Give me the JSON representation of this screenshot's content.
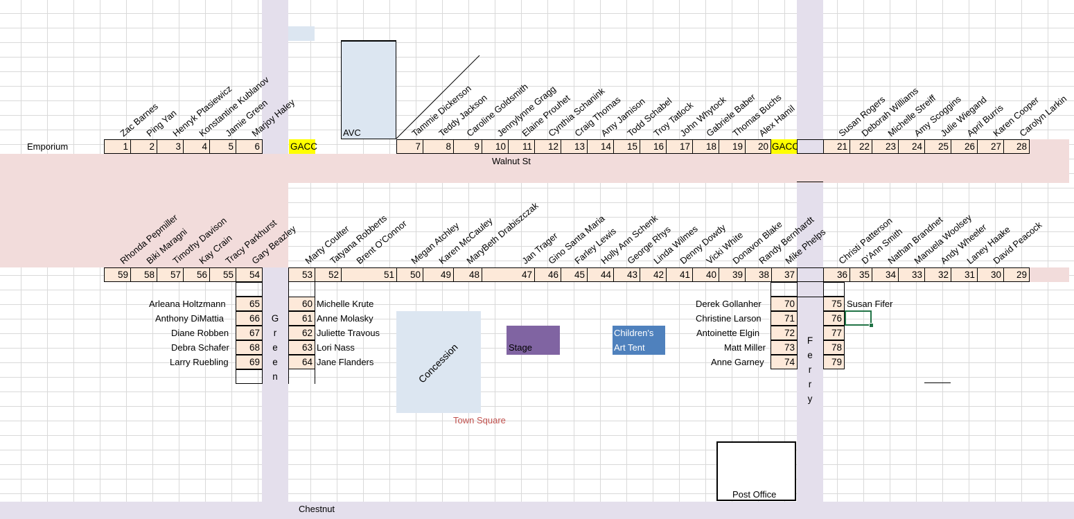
{
  "labels": {
    "emporium": "Emporium",
    "walnut": "Walnut St",
    "chestnut": "Chestnut",
    "avc": "AVC",
    "gacc": "GACC",
    "concession": "Concession",
    "town_square": "Town Square",
    "stage": "Stage",
    "childrens_art_tent_line1": "Children's",
    "childrens_art_tent_line2": "Art Tent",
    "post_office": "Post Office",
    "green_letters": [
      "G",
      "r",
      "e",
      "e",
      "n"
    ],
    "ferry_letters": [
      "F",
      "e",
      "r",
      "r",
      "y"
    ]
  },
  "colors": {
    "street_h": "#f2dcdb",
    "street_v": "#e4dfec",
    "cell_fill": "#fde9d9",
    "gacc": "#ffff00",
    "avc": "#dce6f1",
    "concession": "#dce6f1",
    "stage": "#8064a2",
    "art_tent": "#4f81bd",
    "town_square_text": "#c0504d"
  },
  "top_row": {
    "left": [
      {
        "num": "1",
        "name": "Zac Barnes"
      },
      {
        "num": "2",
        "name": "Ping Yan"
      },
      {
        "num": "3",
        "name": "Henryk Ptasiewicz"
      },
      {
        "num": "4",
        "name": "Konstantine Kublanov"
      },
      {
        "num": "5",
        "name": "Jamie Green"
      },
      {
        "num": "6",
        "name": "Marjoy Haley"
      }
    ],
    "middle": [
      {
        "num": "7",
        "name": "Tammie Dickerson"
      },
      {
        "num": "8",
        "name": "Teddy Jackson"
      },
      {
        "num": "9",
        "name": "Caroline Goldsmith"
      },
      {
        "num": "10",
        "name": "Jennylynne Gragg"
      },
      {
        "num": "11",
        "name": "Elaine Prouhet"
      },
      {
        "num": "12",
        "name": "Cynthia Schanink"
      },
      {
        "num": "13",
        "name": "Craig Thomas"
      },
      {
        "num": "14",
        "name": "Amy Jamison"
      },
      {
        "num": "15",
        "name": "Todd Schabel"
      },
      {
        "num": "16",
        "name": "Troy Tatlock"
      },
      {
        "num": "17",
        "name": "John Whytock"
      },
      {
        "num": "18",
        "name": "Gabriele Baber"
      },
      {
        "num": "19",
        "name": "Thomas Buchs"
      },
      {
        "num": "20",
        "name": "Alex Hamil"
      }
    ],
    "right": [
      {
        "num": "21",
        "name": "Susan Rogers"
      },
      {
        "num": "22",
        "name": "Deborah Williams"
      },
      {
        "num": "23",
        "name": "Michelle Streiff"
      },
      {
        "num": "24",
        "name": "Amy Scoggins"
      },
      {
        "num": "25",
        "name": "Julie Wiegand"
      },
      {
        "num": "26",
        "name": "April Burris"
      },
      {
        "num": "27",
        "name": "Karen Cooper"
      },
      {
        "num": "28",
        "name": "Carolyn Larkin"
      }
    ]
  },
  "bottom_row": {
    "left": [
      {
        "num": "59",
        "name": "Rhonda Pepmiller"
      },
      {
        "num": "58",
        "name": "Biki Maragni"
      },
      {
        "num": "57",
        "name": "Timothy Davison"
      },
      {
        "num": "56",
        "name": "Kay Crain"
      },
      {
        "num": "55",
        "name": "Tracy Parkhurst"
      },
      {
        "num": "54",
        "name": "Gary Beazley"
      }
    ],
    "middle": [
      {
        "num": "53",
        "name": "Marty Coulter"
      },
      {
        "num": "52",
        "name": "Tatyana Robberts"
      },
      {
        "num": "51",
        "name": "Brent O'Connor"
      },
      {
        "num": "50",
        "name": "Megan Atchley"
      },
      {
        "num": "49",
        "name": "Karen McCauley"
      },
      {
        "num": "48",
        "name": "MaryBeth Drabiszczak"
      },
      {
        "num": "47",
        "name": "Jan Trager"
      },
      {
        "num": "46",
        "name": "Gino Santa Maria"
      },
      {
        "num": "45",
        "name": "Farley Lewis"
      },
      {
        "num": "44",
        "name": "Holly Ann Schenk"
      },
      {
        "num": "43",
        "name": "George Rhys"
      },
      {
        "num": "42",
        "name": "Linda Wilmes"
      },
      {
        "num": "41",
        "name": "Denny Dowdy"
      },
      {
        "num": "40",
        "name": "Vicki White"
      },
      {
        "num": "39",
        "name": "Donavon Blake"
      },
      {
        "num": "38",
        "name": "Randy Bernhardt"
      },
      {
        "num": "37",
        "name": "Mike Phelps"
      }
    ],
    "right": [
      {
        "num": "36",
        "name": "Christi Patterson"
      },
      {
        "num": "35",
        "name": "D'Ann Smith"
      },
      {
        "num": "34",
        "name": "Nathan Brandnet"
      },
      {
        "num": "33",
        "name": "Manuela Woolsey"
      },
      {
        "num": "32",
        "name": "Andy Wheeler"
      },
      {
        "num": "31",
        "name": "Laney Haake"
      },
      {
        "num": "30",
        "name": "David Peacock"
      },
      {
        "num": "29",
        "name": ""
      }
    ]
  },
  "green_west": [
    {
      "num": "65",
      "name": "Arleana Holtzmann"
    },
    {
      "num": "66",
      "name": "Anthony DiMattia"
    },
    {
      "num": "67",
      "name": "Diane Robben"
    },
    {
      "num": "68",
      "name": "Debra Schafer"
    },
    {
      "num": "69",
      "name": "Larry Ruebling"
    }
  ],
  "green_east": [
    {
      "num": "60",
      "name": "Michelle Krute"
    },
    {
      "num": "61",
      "name": "Anne Molasky"
    },
    {
      "num": "62",
      "name": "Juliette Travous"
    },
    {
      "num": "63",
      "name": "Lori Nass"
    },
    {
      "num": "64",
      "name": "Jane Flanders"
    }
  ],
  "ferry_west": [
    {
      "num": "70",
      "name": "Derek Gollanher"
    },
    {
      "num": "71",
      "name": "Christine Larson"
    },
    {
      "num": "72",
      "name": "Antoinette Elgin"
    },
    {
      "num": "73",
      "name": "Matt Miller"
    },
    {
      "num": "74",
      "name": "Anne Garney"
    }
  ],
  "ferry_east": [
    {
      "num": "75",
      "name": "Susan Fifer"
    },
    {
      "num": "76",
      "name": ""
    },
    {
      "num": "77",
      "name": ""
    },
    {
      "num": "78",
      "name": ""
    },
    {
      "num": "79",
      "name": ""
    }
  ]
}
